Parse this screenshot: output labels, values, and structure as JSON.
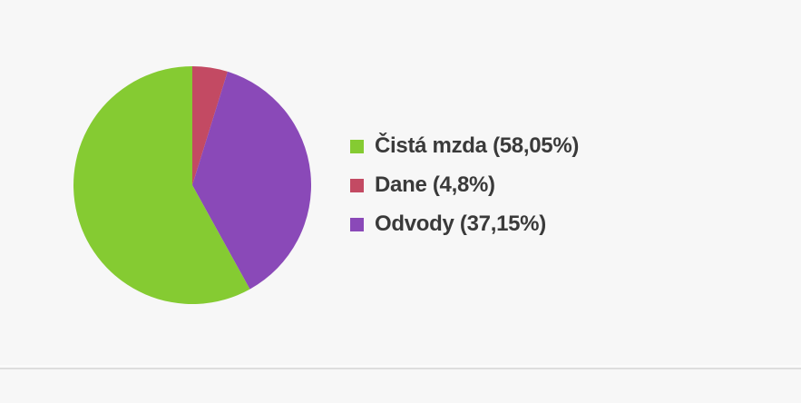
{
  "page": {
    "background_color": "#f7f7f7",
    "divider_color": "#dedede",
    "text_color": "#3a3a3a"
  },
  "chart_data": {
    "type": "pie",
    "title": "",
    "legend_position": "right",
    "grid": false,
    "start_angle_deg": 0,
    "direction": "clockwise",
    "draw_order": [
      1,
      2,
      0
    ],
    "slices": [
      {
        "name": "Čistá mzda",
        "value": 58.05,
        "label": "Čistá mzda (58,05%)",
        "color": "#85cb32"
      },
      {
        "name": "Dane",
        "value": 4.8,
        "label": "Dane (4,8%)",
        "color": "#c34a63"
      },
      {
        "name": "Odvody",
        "value": 37.15,
        "label": "Odvody (37,15%)",
        "color": "#8a49b8"
      }
    ]
  }
}
